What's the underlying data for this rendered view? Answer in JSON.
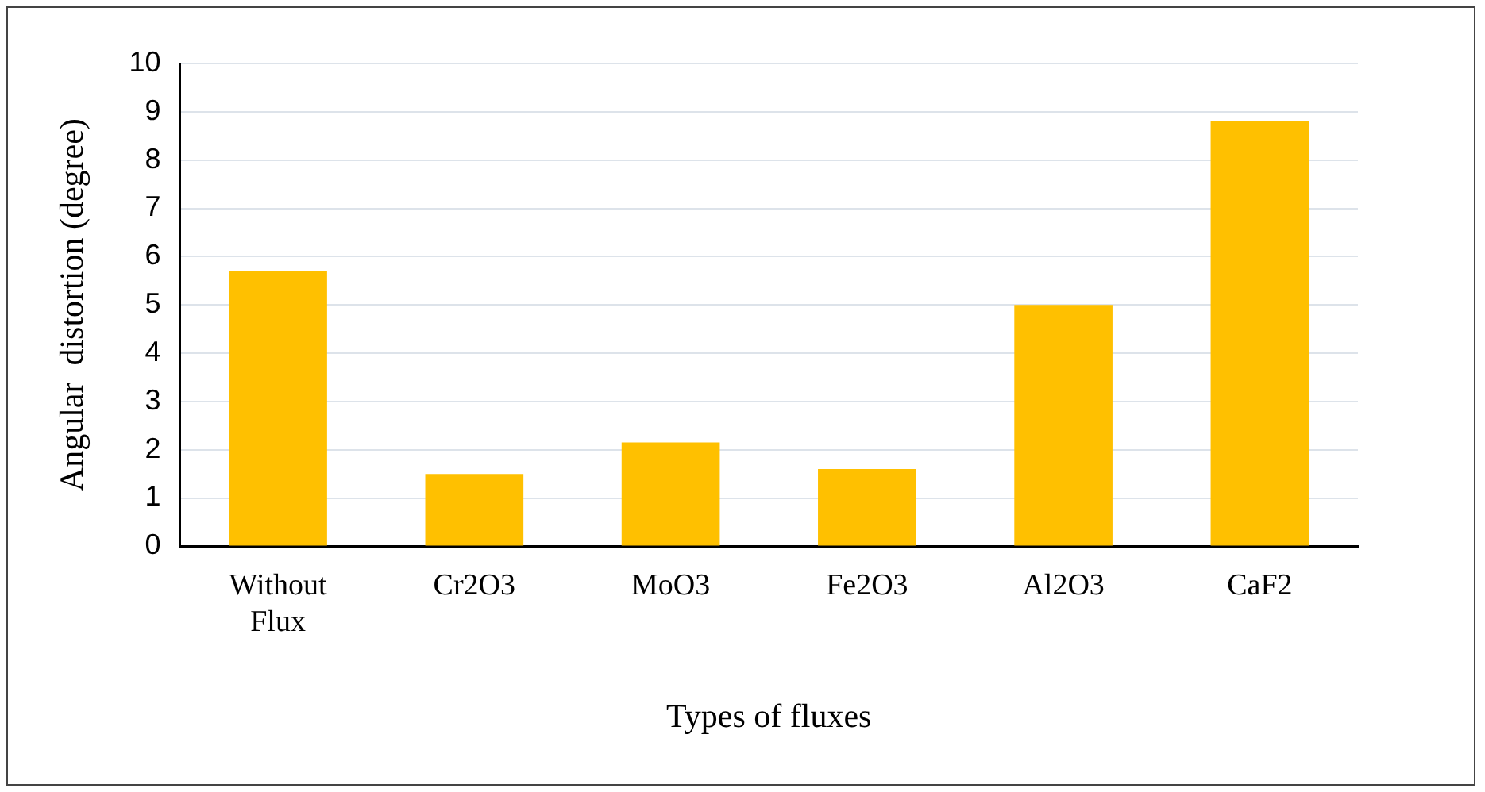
{
  "chart_data": {
    "type": "bar",
    "xlabel": "Types of fluxes",
    "ylabel": "Angular  distortion (degree)",
    "categories": [
      "Without Flux",
      "Cr2O3",
      "MoO3",
      "Fe2O3",
      "Al2O3",
      "CaF2"
    ],
    "values": [
      5.7,
      1.5,
      2.15,
      1.6,
      5.0,
      8.8
    ],
    "color": "#ffc000",
    "ylim": [
      0,
      10
    ],
    "yticks": [
      0,
      1,
      2,
      3,
      4,
      5,
      6,
      7,
      8,
      9,
      10
    ],
    "grid": "y"
  }
}
